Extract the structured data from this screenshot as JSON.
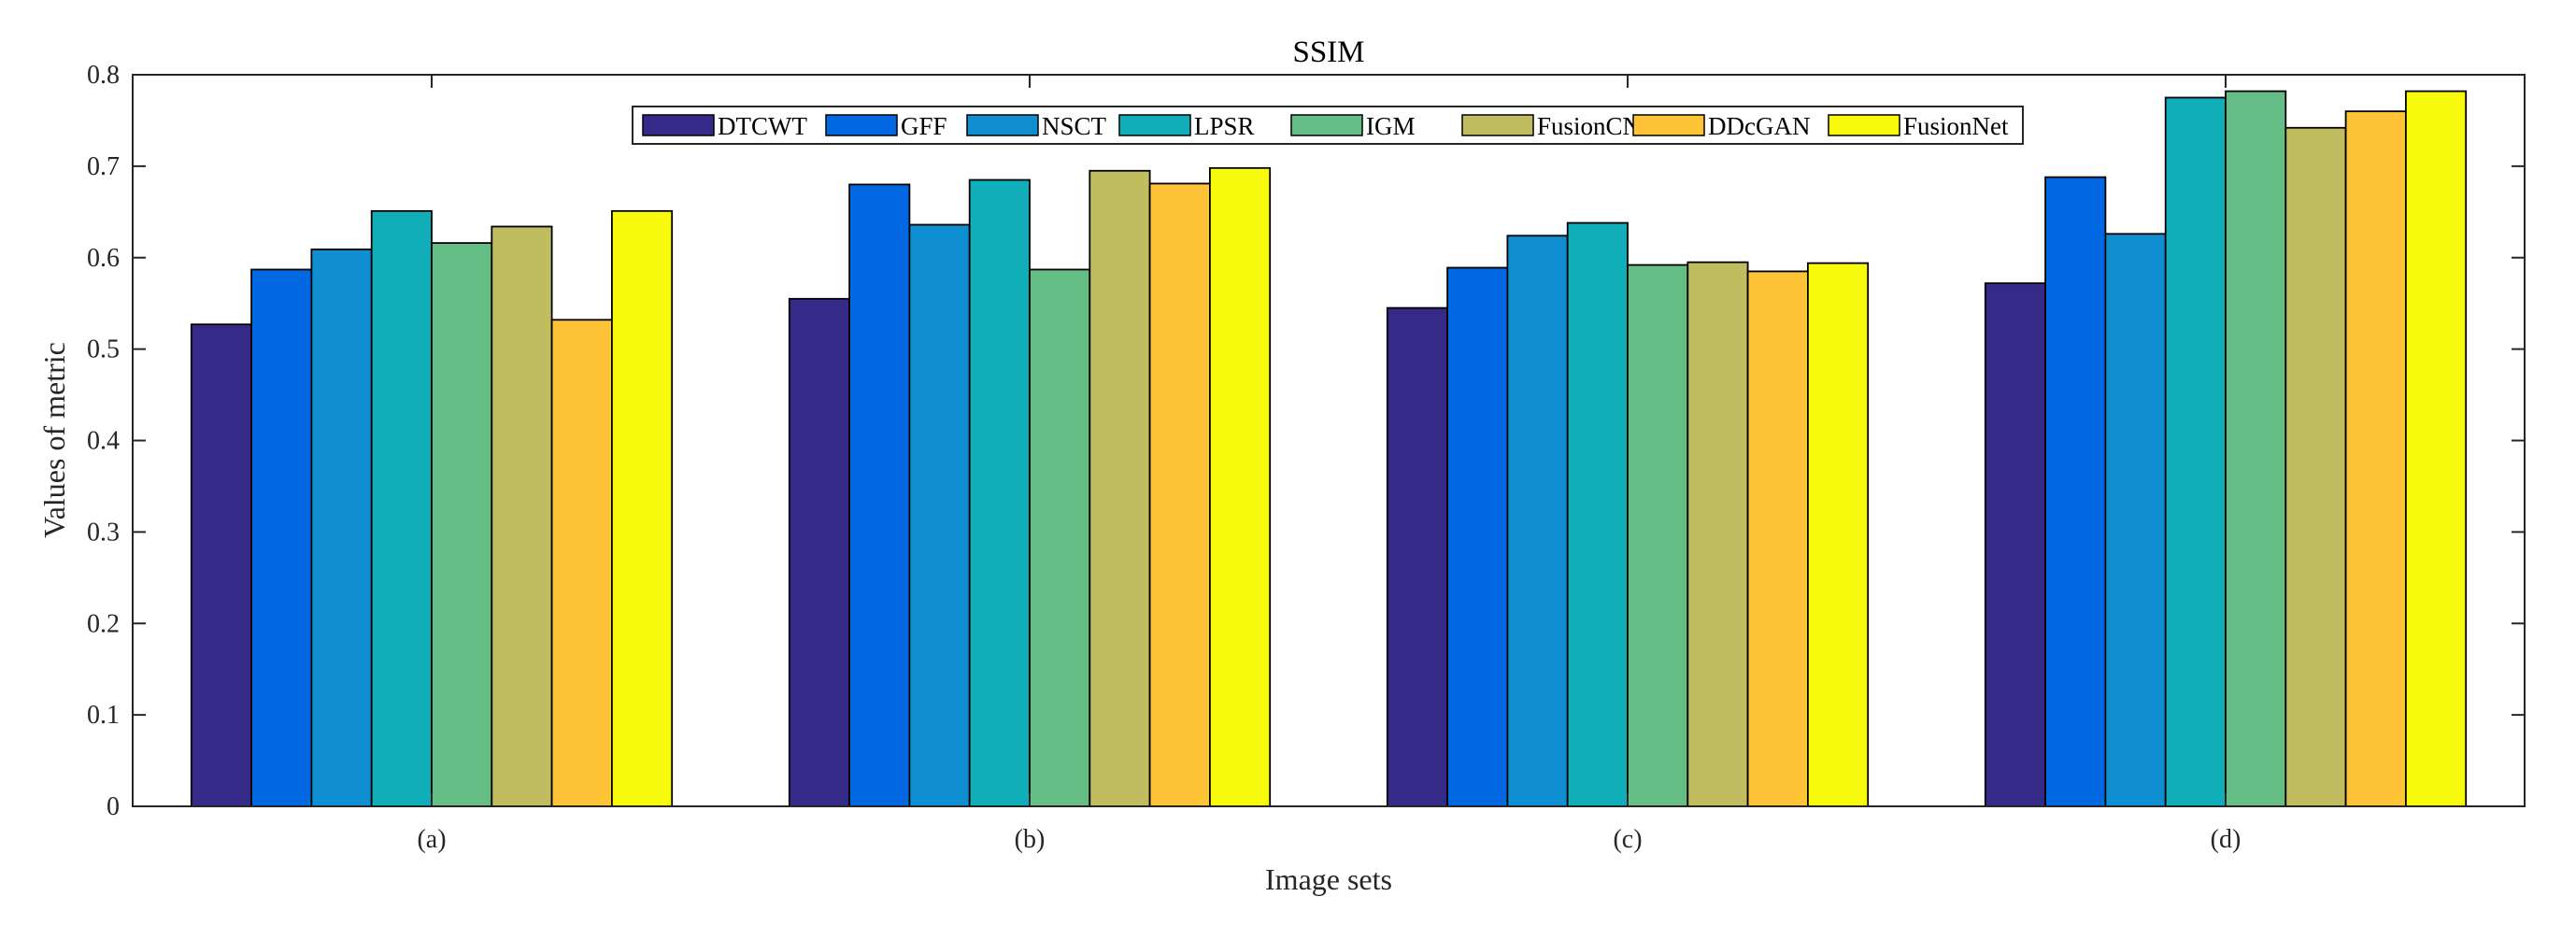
{
  "chart_data": {
    "type": "bar",
    "title": "SSIM",
    "xlabel": "Image sets",
    "ylabel": "Values of metric",
    "categories": [
      "(a)",
      "(b)",
      "(c)",
      "(d)"
    ],
    "ylim": [
      0,
      0.8
    ],
    "yticks": [
      "0",
      "0.1",
      "0.2",
      "0.3",
      "0.4",
      "0.5",
      "0.6",
      "0.7",
      "0.8"
    ],
    "grid": false,
    "legend_position": "top",
    "series": [
      {
        "name": "DTCWT",
        "color": "#352A87",
        "values": [
          0.527,
          0.555,
          0.545,
          0.572
        ]
      },
      {
        "name": "GFF",
        "color": "#0268E1",
        "values": [
          0.587,
          0.68,
          0.589,
          0.688
        ]
      },
      {
        "name": "NSCT",
        "color": "#108ED2",
        "values": [
          0.609,
          0.636,
          0.624,
          0.626
        ]
      },
      {
        "name": "LPSR",
        "color": "#0FAEB9",
        "values": [
          0.651,
          0.685,
          0.638,
          0.775
        ]
      },
      {
        "name": "IGM",
        "color": "#65BE86",
        "values": [
          0.616,
          0.587,
          0.592,
          0.782
        ]
      },
      {
        "name": "FusionCNN",
        "color": "#C0BC60",
        "values": [
          0.634,
          0.695,
          0.595,
          0.742
        ]
      },
      {
        "name": "DDcGAN",
        "color": "#FFC337",
        "values": [
          0.532,
          0.681,
          0.585,
          0.76
        ]
      },
      {
        "name": "FusionNet",
        "color": "#F9FB0E",
        "values": [
          0.651,
          0.698,
          0.594,
          0.782
        ]
      }
    ]
  }
}
